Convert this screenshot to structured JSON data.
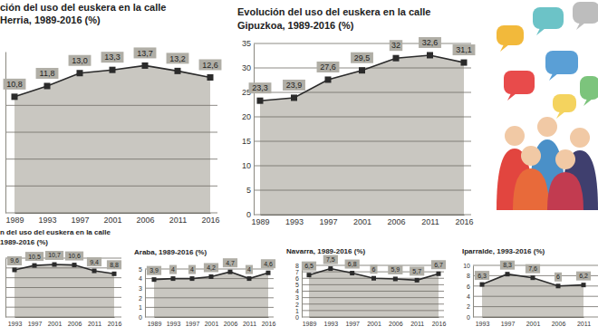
{
  "chart_data": [
    {
      "type": "area",
      "title": "ción del uso del euskera en la calle",
      "subtitle": "Herria, 1989-2016 (%)",
      "categories": [
        "1989",
        "1993",
        "1997",
        "2001",
        "2006",
        "2011",
        "2016"
      ],
      "values": [
        10.8,
        11.8,
        13.0,
        13.3,
        13.7,
        13.2,
        12.6
      ],
      "value_labels": [
        "10,8",
        "11,8",
        "13,0",
        "13,3",
        "13,7",
        "13,2",
        "12,6"
      ],
      "ylim": [
        0,
        15
      ],
      "yticks": [
        0,
        2.5,
        5,
        7.5,
        10
      ],
      "grid": true,
      "tick_labels": "x",
      "data_labels": true,
      "color": "#c9c7c1",
      "marker": "square"
    },
    {
      "type": "area",
      "title": "Evolución del uso del euskera en la calle",
      "subtitle": "Gipuzkoa, 1989-2016 (%)",
      "categories": [
        "1989",
        "1993",
        "1997",
        "2001",
        "2006",
        "2011",
        "2016"
      ],
      "values": [
        23.3,
        23.9,
        27.6,
        29.5,
        32,
        32.6,
        31.1
      ],
      "value_labels": [
        "23,3",
        "23,9",
        "27,6",
        "29,5",
        "32",
        "32,6",
        "31,1"
      ],
      "ylim": [
        0,
        35
      ],
      "yticks": [
        0,
        5,
        10,
        15,
        20,
        25,
        30,
        35
      ],
      "grid": true,
      "data_labels": true,
      "color": "#c9c7c1",
      "marker": "square"
    },
    {
      "type": "area",
      "title": "n del uso del euskera en la calle",
      "subtitle": "1989-2016 (%)",
      "categories": [
        "1993",
        "1997",
        "2001",
        "2006",
        "2011",
        "2016"
      ],
      "values": [
        9.6,
        10.5,
        10.7,
        10.6,
        9.4,
        8.8
      ],
      "value_labels": [
        "9,6",
        "10,5",
        "10,7",
        "10,6",
        "9,4",
        "8,8"
      ],
      "ylim": [
        0,
        12
      ],
      "yticks": [
        0,
        2,
        4,
        6,
        8,
        10,
        12
      ],
      "grid": true,
      "tick_labels": "x",
      "data_labels": true,
      "color": "#c9c7c1",
      "marker": "square"
    },
    {
      "type": "area",
      "title": "Araba, 1989-2016 (%)",
      "categories": [
        "1989",
        "1993",
        "1997",
        "2001",
        "2006",
        "2011",
        "2016"
      ],
      "values": [
        3.9,
        4,
        4,
        4.2,
        4.7,
        4,
        4.6
      ],
      "value_labels": [
        "3,9",
        "4",
        "4",
        "4,2",
        "4,7",
        "4",
        "4,6"
      ],
      "ylim": [
        0,
        5
      ],
      "yticks": [
        0,
        1,
        2,
        3,
        4,
        5
      ],
      "grid": true,
      "data_labels": true,
      "color": "#c9c7c1",
      "marker": "square"
    },
    {
      "type": "area",
      "title": "Navarra, 1989-2016 (%)",
      "categories": [
        "1989",
        "1993",
        "1997",
        "2001",
        "2006",
        "2011",
        "2016"
      ],
      "values": [
        6.5,
        7.5,
        6.8,
        6,
        5.9,
        5.7,
        6.7
      ],
      "value_labels": [
        "6,5",
        "7,5",
        "6,8",
        "6",
        "5,9",
        "5,7",
        "6,7"
      ],
      "ylim": [
        0,
        8
      ],
      "yticks": [
        0,
        1,
        2,
        3,
        4,
        5,
        6,
        7,
        8
      ],
      "grid": true,
      "data_labels": true,
      "color": "#c9c7c1",
      "marker": "square"
    },
    {
      "type": "area",
      "title": "Iparralde, 1993-2016 (%)",
      "categories": [
        "1993",
        "1997",
        "2001",
        "2006",
        "2011"
      ],
      "values": [
        6.3,
        8.3,
        7.6,
        6,
        6.2
      ],
      "value_labels": [
        "6,3",
        "8,3",
        "7,6",
        "6",
        "6,2"
      ],
      "ylim": [
        0,
        10
      ],
      "yticks": [
        0,
        2,
        4,
        6,
        8,
        10
      ],
      "grid": true,
      "data_labels": true,
      "color": "#c9c7c1",
      "marker": "square"
    }
  ]
}
